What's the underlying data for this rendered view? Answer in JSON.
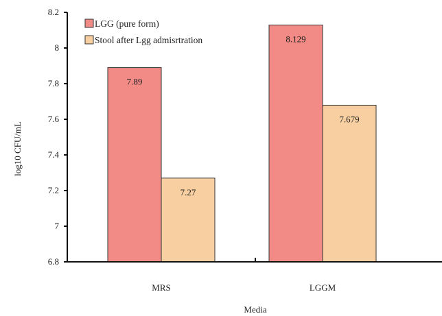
{
  "chart_data": {
    "type": "bar",
    "title": "",
    "xlabel": "Media",
    "ylabel": "log10 CFU/mL",
    "categories": [
      "MRS",
      "LGGM"
    ],
    "series": [
      {
        "name": "LGG (pure form)",
        "values": [
          7.89,
          8.129
        ],
        "value_labels": [
          "7.89",
          "8.129"
        ],
        "color": "#f28b86"
      },
      {
        "name": "Stool after Lgg admisrtration",
        "values": [
          7.27,
          7.679
        ],
        "value_labels": [
          "7.27",
          "7.679"
        ],
        "color": "#f7cfa0"
      }
    ],
    "ylim": [
      6.8,
      8.2
    ],
    "yticks": [
      6.8,
      7,
      7.2,
      7.4,
      7.6,
      7.8,
      8,
      8.2
    ],
    "ytick_labels": [
      "6.8",
      "7",
      "7.2",
      "7.4",
      "7.6",
      "7.8",
      "8",
      "8.2"
    ],
    "grid": false,
    "legend_position": "top-left"
  }
}
